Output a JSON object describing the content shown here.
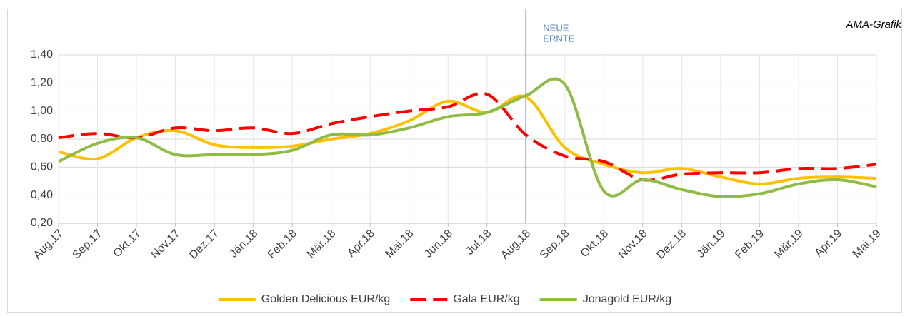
{
  "chart_data": {
    "type": "line",
    "categories": [
      "Aug.17",
      "Sep.17",
      "Okt.17",
      "Nov.17",
      "Dez.17",
      "Jän.18",
      "Feb.18",
      "Mär.18",
      "Apr.18",
      "Mai.18",
      "Jun.18",
      "Jul.18",
      "Aug.18",
      "Sep.18",
      "Okt.18",
      "Nov.18",
      "Dez.18",
      "Jän.19",
      "Feb.19",
      "Mär.19",
      "Apr.19",
      "Mai.19"
    ],
    "series": [
      {
        "name": "Golden Delicious EUR/kg",
        "color": "#ffc000",
        "dash": "solid",
        "values": [
          0.71,
          0.66,
          0.81,
          0.86,
          0.76,
          0.74,
          0.75,
          0.8,
          0.84,
          0.93,
          1.07,
          0.99,
          1.1,
          0.74,
          0.62,
          0.56,
          0.59,
          0.53,
          0.48,
          0.52,
          0.53,
          0.52
        ]
      },
      {
        "name": "Gala EUR/kg",
        "color": "#ff0000",
        "dash": "dashed",
        "values": [
          0.81,
          0.84,
          0.81,
          0.88,
          0.86,
          0.88,
          0.84,
          0.91,
          0.96,
          1.0,
          1.03,
          1.12,
          0.83,
          0.68,
          0.64,
          0.51,
          0.55,
          0.56,
          0.56,
          0.59,
          0.59,
          0.62
        ]
      },
      {
        "name": "Jonagold EUR/kg",
        "color": "#8fbc45",
        "dash": "solid",
        "values": [
          0.64,
          0.77,
          0.81,
          0.69,
          0.69,
          0.69,
          0.72,
          0.83,
          0.83,
          0.88,
          0.96,
          0.99,
          1.11,
          1.19,
          0.43,
          0.51,
          0.44,
          0.39,
          0.41,
          0.48,
          0.51,
          0.46
        ]
      }
    ],
    "ylim": [
      0.2,
      1.4
    ],
    "yticks": [
      {
        "value": 0.2,
        "label": "0,20"
      },
      {
        "value": 0.4,
        "label": "0,40"
      },
      {
        "value": 0.6,
        "label": "0,60"
      },
      {
        "value": 0.8,
        "label": "0,80"
      },
      {
        "value": 1.0,
        "label": "1,00"
      },
      {
        "value": 1.2,
        "label": "1,20"
      },
      {
        "value": 1.4,
        "label": "1,40"
      }
    ],
    "grid": true,
    "legend": "bottom",
    "marker_category": "Aug.18",
    "marker_label": [
      "NEUE",
      "ERNTE"
    ],
    "source": "AMA-Grafik"
  }
}
